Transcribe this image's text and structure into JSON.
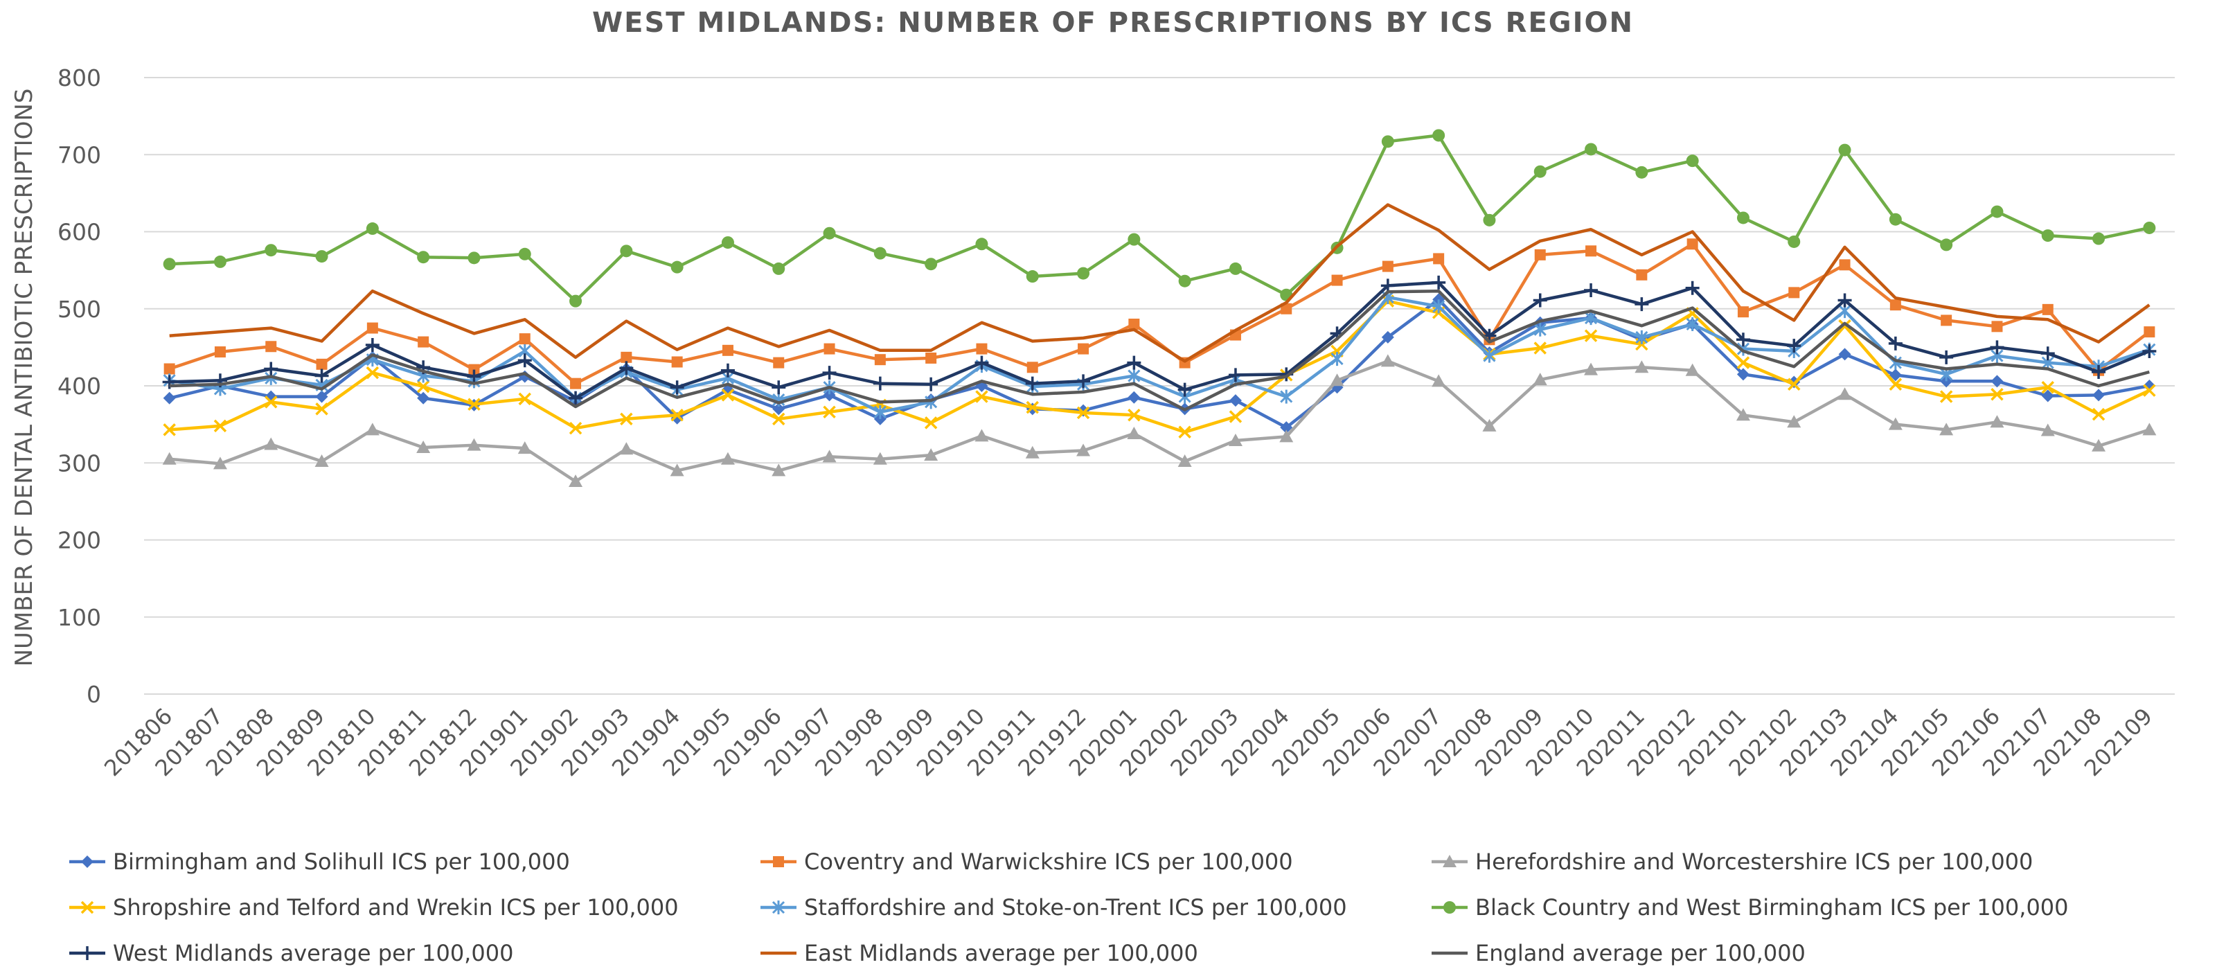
{
  "chart_data": {
    "type": "line",
    "title": "WEST MIDLANDS: NUMBER OF PRESCRIPTIONS BY ICS REGION",
    "ylabel": "NUMBER OF DENTAL ANTIBIOTIC PRESCRIPTIONS",
    "xlabel": "",
    "ylim": [
      0,
      800
    ],
    "yticks": [
      "0",
      "100",
      "200",
      "300",
      "400",
      "500",
      "600",
      "700",
      "800"
    ],
    "grid": true,
    "legend_position": "bottom",
    "categories": [
      "201806",
      "201807",
      "201808",
      "201809",
      "201810",
      "201811",
      "201812",
      "201901",
      "201902",
      "201903",
      "201904",
      "201905",
      "201906",
      "201907",
      "201908",
      "201909",
      "201910",
      "201911",
      "201912",
      "202001",
      "202002",
      "202003",
      "202004",
      "202005",
      "202006",
      "202007",
      "202008",
      "202009",
      "202010",
      "202011",
      "202012",
      "202101",
      "202102",
      "202103",
      "202104",
      "202105",
      "202106",
      "202107",
      "202108",
      "202109"
    ],
    "series": [
      {
        "name": "Birmingham and Solihull ICS per 100,000",
        "color": "#4472C4",
        "marker": "diamond",
        "values": [
          384,
          400,
          386,
          386,
          437,
          384,
          375,
          412,
          380,
          422,
          358,
          395,
          370,
          388,
          357,
          382,
          400,
          370,
          368,
          385,
          370,
          381,
          346,
          398,
          463,
          512,
          443,
          482,
          488,
          460,
          480,
          415,
          405,
          441,
          414,
          406,
          406,
          387,
          388,
          400
        ]
      },
      {
        "name": "Coventry and Warwickshire ICS per 100,000",
        "color": "#ED7D31",
        "marker": "square",
        "values": [
          422,
          444,
          451,
          428,
          475,
          457,
          421,
          461,
          403,
          437,
          431,
          446,
          430,
          448,
          434,
          436,
          448,
          424,
          448,
          480,
          430,
          466,
          500,
          537,
          555,
          565,
          460,
          570,
          575,
          544,
          584,
          496,
          521,
          557,
          505,
          485,
          477,
          499,
          420,
          470
        ]
      },
      {
        "name": "Herefordshire and Worcestershire ICS per 100,000",
        "color": "#A5A5A5",
        "marker": "triangle",
        "values": [
          305,
          299,
          324,
          302,
          343,
          320,
          323,
          319,
          276,
          318,
          290,
          305,
          290,
          308,
          305,
          310,
          335,
          313,
          316,
          338,
          302,
          329,
          334,
          407,
          432,
          406,
          348,
          408,
          421,
          424,
          420,
          362,
          353,
          389,
          350,
          343,
          353,
          342,
          322,
          343
        ]
      },
      {
        "name": "Shropshire and Telford and Wrekin ICS per 100,000",
        "color": "#FFC000",
        "marker": "x",
        "values": [
          343,
          348,
          379,
          370,
          417,
          399,
          376,
          383,
          345,
          357,
          362,
          388,
          357,
          366,
          375,
          352,
          386,
          372,
          365,
          362,
          340,
          360,
          414,
          445,
          510,
          495,
          441,
          449,
          465,
          454,
          494,
          430,
          402,
          478,
          402,
          386,
          389,
          398,
          363,
          394
        ]
      },
      {
        "name": "Staffordshire and Stoke-on-Trent ICS per 100,000",
        "color": "#5B9BD5",
        "marker": "star",
        "values": [
          407,
          396,
          410,
          401,
          434,
          413,
          406,
          445,
          384,
          418,
          395,
          410,
          382,
          398,
          366,
          379,
          426,
          399,
          402,
          413,
          386,
          408,
          386,
          435,
          515,
          503,
          439,
          473,
          488,
          463,
          480,
          448,
          445,
          497,
          430,
          415,
          439,
          430,
          425,
          447
        ]
      },
      {
        "name": "Black Country and West Birmingham ICS per 100,000",
        "color": "#70AD47",
        "marker": "circle",
        "values": [
          558,
          561,
          576,
          568,
          604,
          567,
          566,
          571,
          510,
          575,
          554,
          586,
          552,
          598,
          572,
          558,
          584,
          542,
          546,
          590,
          536,
          552,
          518,
          579,
          717,
          725,
          615,
          678,
          707,
          677,
          692,
          618,
          587,
          706,
          616,
          583,
          626,
          595,
          591,
          605
        ]
      },
      {
        "name": "West Midlands average per 100,000",
        "color": "#203864",
        "marker": "plus",
        "values": [
          405,
          407,
          422,
          413,
          453,
          424,
          412,
          433,
          384,
          423,
          398,
          420,
          398,
          417,
          403,
          402,
          430,
          403,
          406,
          430,
          395,
          414,
          415,
          468,
          530,
          534,
          465,
          511,
          524,
          506,
          527,
          460,
          452,
          511,
          455,
          437,
          450,
          442,
          418,
          445
        ]
      },
      {
        "name": "East Midlands average per 100,000",
        "color": "#C55A11",
        "marker": "none",
        "values": [
          465,
          470,
          475,
          458,
          523,
          494,
          468,
          486,
          437,
          484,
          447,
          475,
          451,
          472,
          446,
          446,
          482,
          458,
          462,
          473,
          432,
          472,
          508,
          581,
          635,
          602,
          551,
          588,
          603,
          570,
          600,
          523,
          485,
          580,
          514,
          502,
          490,
          486,
          457,
          505
        ]
      },
      {
        "name": "England average per 100,000",
        "color": "#595959",
        "marker": "none",
        "values": [
          400,
          402,
          412,
          396,
          440,
          419,
          403,
          416,
          373,
          410,
          385,
          402,
          378,
          398,
          379,
          381,
          406,
          389,
          392,
          403,
          369,
          402,
          412,
          461,
          522,
          523,
          457,
          484,
          497,
          478,
          501,
          445,
          425,
          481,
          433,
          422,
          428,
          422,
          400,
          418
        ]
      }
    ]
  }
}
